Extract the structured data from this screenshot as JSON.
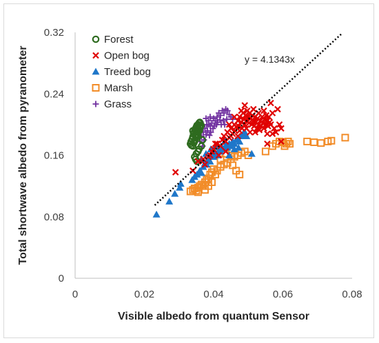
{
  "chart_data": {
    "type": "scatter",
    "xlabel": "Visible albedo from quantum Sensor",
    "ylabel": "Total shortwave albedo from pyranometer",
    "xlim": [
      0,
      0.08
    ],
    "ylim": [
      0,
      0.32
    ],
    "xticks": [
      "0",
      "0.02",
      "0.04",
      "0.06",
      "0.08"
    ],
    "yticks": [
      "0",
      "0.08",
      "0.16",
      "0.24",
      "0.32"
    ],
    "grid": false,
    "legend_position": "top-left",
    "trendline": {
      "label": "y = 4.1343x",
      "slope": 4.1343,
      "x_range": [
        0.023,
        0.077
      ],
      "style": "dotted",
      "color": "#000000"
    },
    "series": [
      {
        "name": "Forest",
        "marker": "circle-open",
        "color": "#2e6b1f",
        "points": [
          [
            0.0333,
            0.175
          ],
          [
            0.0335,
            0.178
          ],
          [
            0.0338,
            0.181
          ],
          [
            0.034,
            0.184
          ],
          [
            0.0342,
            0.188
          ],
          [
            0.0344,
            0.19
          ],
          [
            0.0346,
            0.193
          ],
          [
            0.0348,
            0.195
          ],
          [
            0.035,
            0.197
          ],
          [
            0.0352,
            0.199
          ],
          [
            0.0355,
            0.2
          ],
          [
            0.0358,
            0.202
          ],
          [
            0.036,
            0.203
          ],
          [
            0.0343,
            0.176
          ],
          [
            0.0347,
            0.18
          ],
          [
            0.0351,
            0.185
          ],
          [
            0.0354,
            0.19
          ],
          [
            0.0357,
            0.194
          ],
          [
            0.036,
            0.196
          ],
          [
            0.0336,
            0.173
          ],
          [
            0.034,
            0.172
          ],
          [
            0.0345,
            0.178
          ],
          [
            0.0349,
            0.183
          ],
          [
            0.0353,
            0.187
          ],
          [
            0.0356,
            0.191
          ],
          [
            0.0359,
            0.192
          ],
          [
            0.0362,
            0.197
          ],
          [
            0.0364,
            0.199
          ],
          [
            0.034,
            0.192
          ],
          [
            0.0346,
            0.186
          ],
          [
            0.035,
            0.19
          ],
          [
            0.0355,
            0.185
          ],
          [
            0.0345,
            0.158
          ],
          [
            0.035,
            0.162
          ],
          [
            0.0355,
            0.165
          ],
          [
            0.0348,
            0.155
          ],
          [
            0.0358,
            0.168
          ],
          [
            0.0365,
            0.172
          ],
          [
            0.0352,
            0.152
          ],
          [
            0.0368,
            0.18
          ]
        ]
      },
      {
        "name": "Open bog",
        "marker": "x",
        "color": "#e00000",
        "points": [
          [
            0.029,
            0.138
          ],
          [
            0.0355,
            0.152
          ],
          [
            0.037,
            0.155
          ],
          [
            0.0375,
            0.148
          ],
          [
            0.039,
            0.16
          ],
          [
            0.04,
            0.168
          ],
          [
            0.041,
            0.175
          ],
          [
            0.042,
            0.172
          ],
          [
            0.0425,
            0.18
          ],
          [
            0.043,
            0.185
          ],
          [
            0.0435,
            0.178
          ],
          [
            0.044,
            0.19
          ],
          [
            0.0445,
            0.183
          ],
          [
            0.045,
            0.195
          ],
          [
            0.0455,
            0.188
          ],
          [
            0.046,
            0.2
          ],
          [
            0.0462,
            0.192
          ],
          [
            0.0465,
            0.197
          ],
          [
            0.047,
            0.205
          ],
          [
            0.0472,
            0.198
          ],
          [
            0.0475,
            0.21
          ],
          [
            0.048,
            0.203
          ],
          [
            0.0482,
            0.195
          ],
          [
            0.0485,
            0.215
          ],
          [
            0.0487,
            0.207
          ],
          [
            0.049,
            0.2
          ],
          [
            0.0492,
            0.212
          ],
          [
            0.0495,
            0.205
          ],
          [
            0.0497,
            0.218
          ],
          [
            0.05,
            0.21
          ],
          [
            0.0502,
            0.202
          ],
          [
            0.0505,
            0.215
          ],
          [
            0.0507,
            0.208
          ],
          [
            0.051,
            0.2
          ],
          [
            0.0512,
            0.212
          ],
          [
            0.0515,
            0.205
          ],
          [
            0.0517,
            0.198
          ],
          [
            0.052,
            0.21
          ],
          [
            0.0522,
            0.203
          ],
          [
            0.0525,
            0.195
          ],
          [
            0.0527,
            0.208
          ],
          [
            0.053,
            0.2
          ],
          [
            0.0532,
            0.193
          ],
          [
            0.0535,
            0.205
          ],
          [
            0.0537,
            0.198
          ],
          [
            0.054,
            0.21
          ],
          [
            0.0542,
            0.202
          ],
          [
            0.0545,
            0.195
          ],
          [
            0.0547,
            0.207
          ],
          [
            0.055,
            0.2
          ],
          [
            0.0552,
            0.212
          ],
          [
            0.0555,
            0.205
          ],
          [
            0.0557,
            0.198
          ],
          [
            0.056,
            0.21
          ],
          [
            0.0562,
            0.203
          ],
          [
            0.0565,
            0.228
          ],
          [
            0.057,
            0.215
          ],
          [
            0.0575,
            0.195
          ],
          [
            0.058,
            0.19
          ],
          [
            0.0585,
            0.22
          ],
          [
            0.059,
            0.2
          ],
          [
            0.0445,
            0.2
          ],
          [
            0.045,
            0.185
          ],
          [
            0.046,
            0.21
          ],
          [
            0.0475,
            0.192
          ],
          [
            0.048,
            0.218
          ],
          [
            0.049,
            0.225
          ],
          [
            0.0505,
            0.19
          ],
          [
            0.0515,
            0.22
          ],
          [
            0.053,
            0.215
          ],
          [
            0.0545,
            0.218
          ],
          [
            0.0555,
            0.188
          ],
          [
            0.0565,
            0.2
          ],
          [
            0.057,
            0.188
          ],
          [
            0.0595,
            0.195
          ],
          [
            0.0555,
            0.175
          ],
          [
            0.0595,
            0.178
          ],
          [
            0.0435,
            0.165
          ],
          [
            0.0415,
            0.16
          ],
          [
            0.047,
            0.185
          ],
          [
            0.0495,
            0.195
          ],
          [
            0.052,
            0.19
          ],
          [
            0.0405,
            0.175
          ],
          [
            0.0395,
            0.165
          ],
          [
            0.0385,
            0.158
          ],
          [
            0.034,
            0.14
          ]
        ]
      },
      {
        "name": "Treed bog",
        "marker": "triangle",
        "color": "#1f77c9",
        "points": [
          [
            0.0235,
            0.083
          ],
          [
            0.0272,
            0.1
          ],
          [
            0.0288,
            0.11
          ],
          [
            0.0302,
            0.118
          ],
          [
            0.0305,
            0.123
          ],
          [
            0.0338,
            0.128
          ],
          [
            0.0345,
            0.132
          ],
          [
            0.0352,
            0.135
          ],
          [
            0.036,
            0.14
          ],
          [
            0.0365,
            0.137
          ],
          [
            0.037,
            0.145
          ],
          [
            0.0375,
            0.15
          ],
          [
            0.038,
            0.148
          ],
          [
            0.0385,
            0.155
          ],
          [
            0.039,
            0.152
          ],
          [
            0.0395,
            0.16
          ],
          [
            0.04,
            0.158
          ],
          [
            0.0405,
            0.163
          ],
          [
            0.041,
            0.16
          ],
          [
            0.0415,
            0.167
          ],
          [
            0.042,
            0.165
          ],
          [
            0.0425,
            0.17
          ],
          [
            0.043,
            0.168
          ],
          [
            0.0435,
            0.173
          ],
          [
            0.044,
            0.17
          ],
          [
            0.0445,
            0.175
          ],
          [
            0.045,
            0.172
          ],
          [
            0.0455,
            0.178
          ],
          [
            0.046,
            0.175
          ],
          [
            0.0465,
            0.18
          ],
          [
            0.047,
            0.182
          ],
          [
            0.0475,
            0.178
          ],
          [
            0.048,
            0.185
          ],
          [
            0.0485,
            0.188
          ],
          [
            0.049,
            0.19
          ],
          [
            0.0495,
            0.185
          ],
          [
            0.051,
            0.162
          ],
          [
            0.0365,
            0.155
          ],
          [
            0.0378,
            0.162
          ],
          [
            0.0392,
            0.168
          ],
          [
            0.0405,
            0.172
          ],
          [
            0.0418,
            0.165
          ],
          [
            0.0432,
            0.178
          ],
          [
            0.0445,
            0.16
          ],
          [
            0.046,
            0.168
          ],
          [
            0.0472,
            0.17
          ]
        ]
      },
      {
        "name": "Marsh",
        "marker": "square-open",
        "color": "#f28c28",
        "points": [
          [
            0.0333,
            0.113
          ],
          [
            0.034,
            0.115
          ],
          [
            0.0345,
            0.117
          ],
          [
            0.035,
            0.114
          ],
          [
            0.0355,
            0.118
          ],
          [
            0.036,
            0.12
          ],
          [
            0.0365,
            0.122
          ],
          [
            0.037,
            0.12
          ],
          [
            0.0375,
            0.125
          ],
          [
            0.038,
            0.128
          ],
          [
            0.0385,
            0.13
          ],
          [
            0.039,
            0.135
          ],
          [
            0.0395,
            0.138
          ],
          [
            0.04,
            0.142
          ],
          [
            0.041,
            0.14
          ],
          [
            0.042,
            0.145
          ],
          [
            0.043,
            0.148
          ],
          [
            0.044,
            0.15
          ],
          [
            0.045,
            0.155
          ],
          [
            0.046,
            0.158
          ],
          [
            0.047,
            0.16
          ],
          [
            0.048,
            0.163
          ],
          [
            0.049,
            0.165
          ],
          [
            0.05,
            0.16
          ],
          [
            0.0455,
            0.147
          ],
          [
            0.0465,
            0.14
          ],
          [
            0.0475,
            0.135
          ],
          [
            0.0395,
            0.125
          ],
          [
            0.0405,
            0.135
          ],
          [
            0.042,
            0.155
          ],
          [
            0.0435,
            0.162
          ],
          [
            0.045,
            0.16
          ],
          [
            0.055,
            0.165
          ],
          [
            0.057,
            0.172
          ],
          [
            0.058,
            0.175
          ],
          [
            0.059,
            0.178
          ],
          [
            0.06,
            0.177
          ],
          [
            0.061,
            0.175
          ],
          [
            0.062,
            0.175
          ],
          [
            0.067,
            0.178
          ],
          [
            0.069,
            0.177
          ],
          [
            0.071,
            0.176
          ],
          [
            0.073,
            0.178
          ],
          [
            0.074,
            0.179
          ],
          [
            0.078,
            0.183
          ],
          [
            0.0605,
            0.172
          ],
          [
            0.0615,
            0.178
          ],
          [
            0.0385,
            0.12
          ],
          [
            0.0375,
            0.115
          ],
          [
            0.0355,
            0.112
          ]
        ]
      },
      {
        "name": "Grass",
        "marker": "plus",
        "color": "#7030a0",
        "points": [
          [
            0.036,
            0.178
          ],
          [
            0.0365,
            0.185
          ],
          [
            0.037,
            0.19
          ],
          [
            0.0375,
            0.195
          ],
          [
            0.038,
            0.2
          ],
          [
            0.0385,
            0.205
          ],
          [
            0.039,
            0.198
          ],
          [
            0.0395,
            0.202
          ],
          [
            0.04,
            0.208
          ],
          [
            0.0405,
            0.205
          ],
          [
            0.041,
            0.21
          ],
          [
            0.0415,
            0.215
          ],
          [
            0.042,
            0.212
          ],
          [
            0.0425,
            0.218
          ],
          [
            0.043,
            0.215
          ],
          [
            0.0435,
            0.22
          ],
          [
            0.044,
            0.218
          ],
          [
            0.0445,
            0.213
          ],
          [
            0.045,
            0.21
          ],
          [
            0.0455,
            0.207
          ],
          [
            0.0368,
            0.172
          ],
          [
            0.0372,
            0.18
          ],
          [
            0.0378,
            0.187
          ],
          [
            0.0382,
            0.192
          ],
          [
            0.0388,
            0.186
          ],
          [
            0.0392,
            0.19
          ],
          [
            0.0398,
            0.195
          ],
          [
            0.0402,
            0.198
          ],
          [
            0.0408,
            0.2
          ],
          [
            0.0412,
            0.203
          ],
          [
            0.0418,
            0.206
          ],
          [
            0.0422,
            0.2
          ],
          [
            0.0428,
            0.205
          ],
          [
            0.0432,
            0.2
          ],
          [
            0.0438,
            0.207
          ],
          [
            0.0378,
            0.208
          ],
          [
            0.0385,
            0.2
          ],
          [
            0.039,
            0.21
          ],
          [
            0.037,
            0.2
          ]
        ]
      }
    ]
  }
}
